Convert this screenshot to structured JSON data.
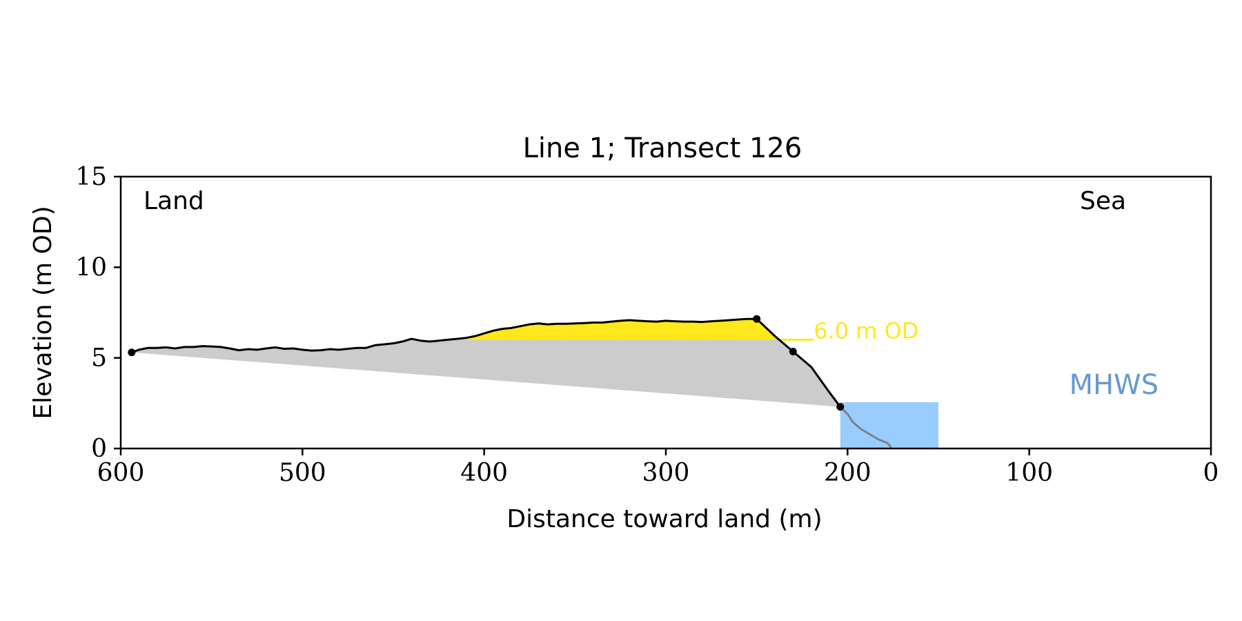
{
  "chart_data": {
    "type": "line",
    "title": "Line 1; Transect 126",
    "xlabel": "Distance toward land (m)",
    "ylabel": "Elevation (m OD)",
    "xlim": [
      600,
      0
    ],
    "ylim": [
      0,
      15
    ],
    "x_ticks": [
      600,
      500,
      400,
      300,
      200,
      100,
      0
    ],
    "y_ticks": [
      0,
      5,
      10,
      15
    ],
    "grid": false,
    "annotations": {
      "land": "Land",
      "sea": "Sea",
      "threshold_label": "6.0 m OD",
      "mhws_label": "MHWS"
    },
    "threshold_elevation": 6.0,
    "mhws_elevation": 2.55,
    "mhws_x_range": [
      204,
      150
    ],
    "profile": {
      "x": [
        594,
        590,
        585,
        580,
        575,
        570,
        565,
        560,
        555,
        550,
        545,
        540,
        535,
        530,
        525,
        520,
        515,
        510,
        505,
        500,
        495,
        490,
        485,
        480,
        475,
        470,
        465,
        460,
        455,
        450,
        445,
        440,
        435,
        430,
        425,
        420,
        415,
        410,
        405,
        400,
        395,
        390,
        385,
        380,
        375,
        370,
        365,
        360,
        355,
        350,
        345,
        340,
        335,
        330,
        325,
        320,
        315,
        310,
        305,
        300,
        295,
        290,
        285,
        280,
        275,
        270,
        265,
        260,
        255,
        250,
        240,
        230,
        220,
        210,
        204
      ],
      "y": [
        5.3,
        5.45,
        5.55,
        5.55,
        5.58,
        5.52,
        5.6,
        5.6,
        5.65,
        5.63,
        5.6,
        5.52,
        5.42,
        5.48,
        5.45,
        5.52,
        5.58,
        5.5,
        5.52,
        5.45,
        5.4,
        5.42,
        5.48,
        5.45,
        5.5,
        5.55,
        5.55,
        5.7,
        5.75,
        5.8,
        5.9,
        6.05,
        5.95,
        5.9,
        5.95,
        6.0,
        6.05,
        6.1,
        6.2,
        6.35,
        6.5,
        6.6,
        6.65,
        6.75,
        6.85,
        6.9,
        6.85,
        6.88,
        6.88,
        6.9,
        6.92,
        6.95,
        6.95,
        7.0,
        7.05,
        7.08,
        7.05,
        7.02,
        7.0,
        7.05,
        7.02,
        7.0,
        7.0,
        6.98,
        7.02,
        7.05,
        7.08,
        7.12,
        7.15,
        7.15,
        6.2,
        5.35,
        4.5,
        3.1,
        2.3
      ]
    },
    "toe": {
      "x": [
        204,
        200,
        197,
        193,
        188,
        183,
        178,
        176
      ],
      "y": [
        2.3,
        1.9,
        1.45,
        1.1,
        0.8,
        0.5,
        0.3,
        0.05
      ]
    },
    "base_line": {
      "x": [
        594,
        204
      ],
      "y": [
        5.3,
        2.3
      ]
    },
    "markers": {
      "x": [
        594,
        250,
        230,
        204
      ],
      "y": [
        5.3,
        7.15,
        5.35,
        2.3
      ]
    },
    "colors": {
      "profile": "#000000",
      "toe": "#808080",
      "gray_fill": "#cccccc",
      "yellow_fill": "#ffe81c",
      "threshold": "#ffe81c",
      "mhws_fill": "#99ccff",
      "mhws_text": "#6699cc"
    }
  }
}
